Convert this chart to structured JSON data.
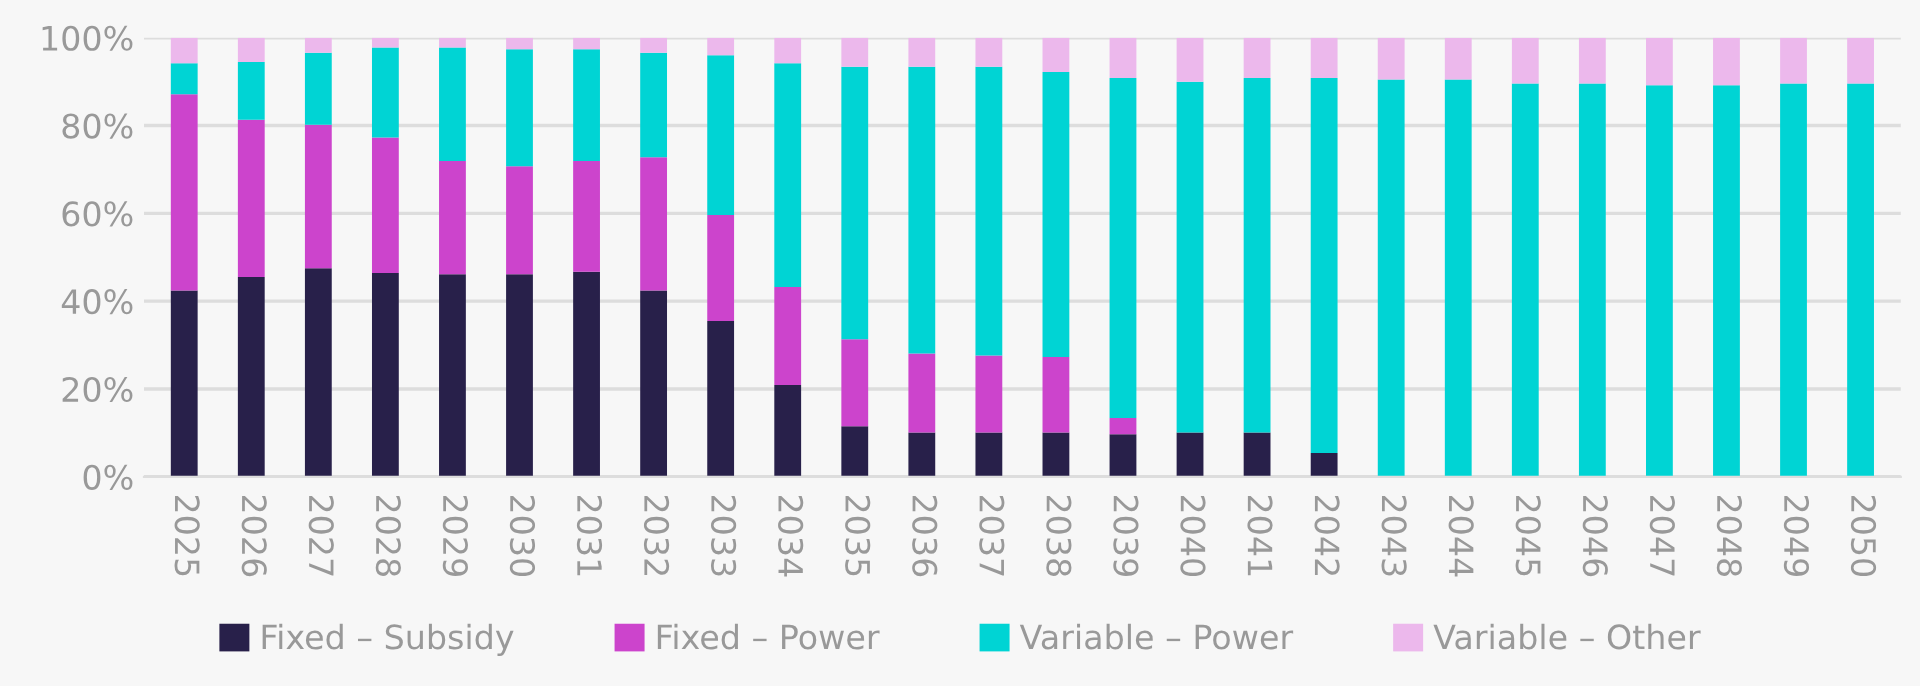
{
  "chart_data": {
    "type": "bar",
    "stacked": true,
    "categories": [
      "2025",
      "2026",
      "2027",
      "2028",
      "2029",
      "2030",
      "2031",
      "2032",
      "2033",
      "2034",
      "2035",
      "2036",
      "2037",
      "2038",
      "2039",
      "2040",
      "2041",
      "2042",
      "2043",
      "2044",
      "2045",
      "2046",
      "2047",
      "2048",
      "2049",
      "2050"
    ],
    "series": [
      {
        "name": "Fixed – Subsidy",
        "color": "#28204a",
        "values": [
          42.4,
          45.5,
          47.5,
          46.4,
          46.1,
          46.1,
          46.7,
          42.4,
          35.5,
          20.9,
          11.5,
          10.1,
          10.1,
          10.1,
          9.7,
          10.1,
          10.1,
          5.4,
          0,
          0,
          0,
          0,
          0,
          0,
          0,
          0
        ]
      },
      {
        "name": "Fixed – Power",
        "color": "#cc44cc",
        "values": [
          44.7,
          35.8,
          32.7,
          30.9,
          25.8,
          24.6,
          25.2,
          30.4,
          24.1,
          22.3,
          19.8,
          18.0,
          17.5,
          17.2,
          3.7,
          0,
          0,
          0,
          0,
          0,
          0,
          0,
          0,
          0,
          0,
          0
        ]
      },
      {
        "name": "Variable – Power",
        "color": "#00d4d4",
        "values": [
          7.1,
          13.2,
          16.4,
          20.5,
          25.9,
          26.7,
          25.5,
          23.8,
          36.4,
          51.0,
          62.1,
          65.3,
          65.8,
          64.9,
          77.4,
          79.9,
          80.7,
          85.4,
          90.5,
          90.5,
          89.6,
          89.6,
          89.2,
          89.2,
          89.6,
          89.6
        ]
      },
      {
        "name": "Variable – Other",
        "color": "#ecb8ec",
        "values": [
          5.8,
          5.5,
          3.4,
          2.2,
          2.2,
          2.6,
          2.6,
          3.4,
          4.0,
          5.8,
          6.6,
          6.6,
          6.6,
          7.8,
          9.2,
          10.0,
          9.2,
          9.2,
          9.5,
          9.5,
          10.4,
          10.4,
          10.8,
          10.8,
          10.4,
          10.4
        ]
      }
    ],
    "ylim": [
      0,
      100
    ],
    "yticks": [
      {
        "value": 0,
        "label": "0%"
      },
      {
        "value": 20,
        "label": "20%"
      },
      {
        "value": 40,
        "label": "40%"
      },
      {
        "value": 60,
        "label": "60%"
      },
      {
        "value": 80,
        "label": "80%"
      },
      {
        "value": 100,
        "label": "100%"
      }
    ],
    "grid": "y",
    "legend": "bottom"
  }
}
